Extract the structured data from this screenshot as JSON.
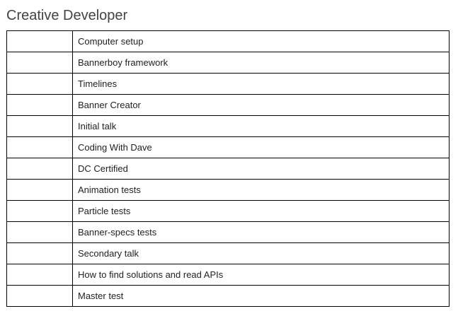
{
  "page": {
    "title": "Creative Developer"
  },
  "checklist": {
    "items": [
      {
        "check": "",
        "label": "Computer setup"
      },
      {
        "check": "",
        "label": "Bannerboy framework"
      },
      {
        "check": "",
        "label": "Timelines"
      },
      {
        "check": "",
        "label": "Banner Creator"
      },
      {
        "check": "",
        "label": "Initial talk"
      },
      {
        "check": "",
        "label": "Coding With Dave"
      },
      {
        "check": "",
        "label": "DC Certified"
      },
      {
        "check": "",
        "label": "Animation tests"
      },
      {
        "check": "",
        "label": "Particle tests"
      },
      {
        "check": "",
        "label": "Banner-specs tests"
      },
      {
        "check": "",
        "label": "Secondary talk"
      },
      {
        "check": "",
        "label": "How to find solutions and read APIs"
      },
      {
        "check": "",
        "label": "Master test"
      }
    ]
  }
}
